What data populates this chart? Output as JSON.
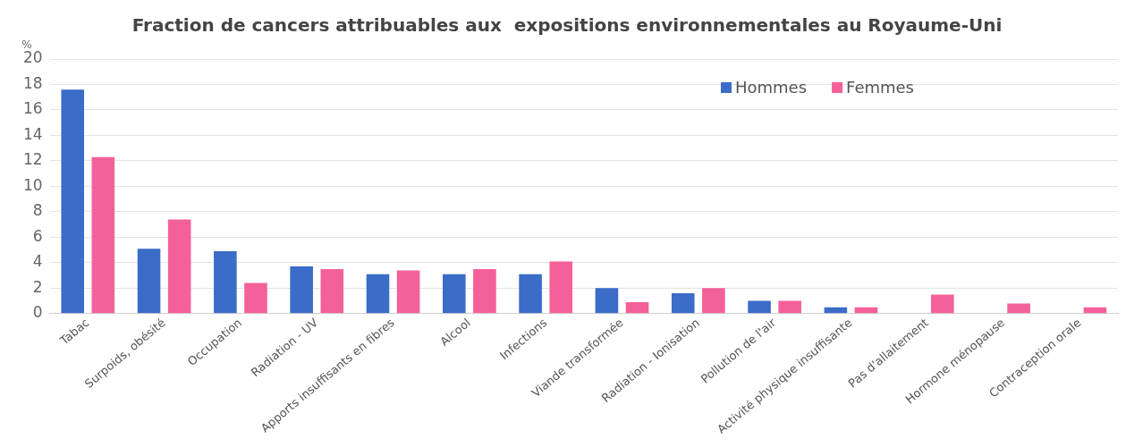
{
  "chart_data": {
    "type": "bar",
    "title": "Fraction de cancers attribuables aux  expositions environnementales au Royaume-Uni",
    "ylabel": "%",
    "categories": [
      "Tabac",
      "Surpoids, obésité",
      "Occupation",
      "Radiation - UV",
      "Apports insuffisants en fibres",
      "Alcool",
      "Infections",
      "Viande transformée",
      "Radiation - Ionisation",
      "Pollution de l'air",
      "Activité physique insuffisante",
      "Pas d'allaitement",
      "Hormone ménopause",
      "Contraception orale"
    ],
    "series": [
      {
        "name": "Hommes",
        "color": "#3a6cc8",
        "values": [
          17.6,
          5.1,
          4.9,
          3.7,
          3.1,
          3.1,
          3.1,
          2.0,
          1.6,
          1.0,
          0.5,
          null,
          null,
          null
        ]
      },
      {
        "name": "Femmes",
        "color": "#f4609a",
        "values": [
          12.3,
          7.4,
          2.4,
          3.5,
          3.4,
          3.5,
          4.1,
          0.9,
          2.0,
          1.0,
          0.5,
          1.5,
          0.8,
          0.5
        ]
      }
    ],
    "ylim": [
      0,
      20
    ],
    "yticks": [
      0,
      2,
      4,
      6,
      8,
      10,
      12,
      14,
      16,
      18,
      20
    ],
    "grid": "y",
    "legend": "top right"
  }
}
